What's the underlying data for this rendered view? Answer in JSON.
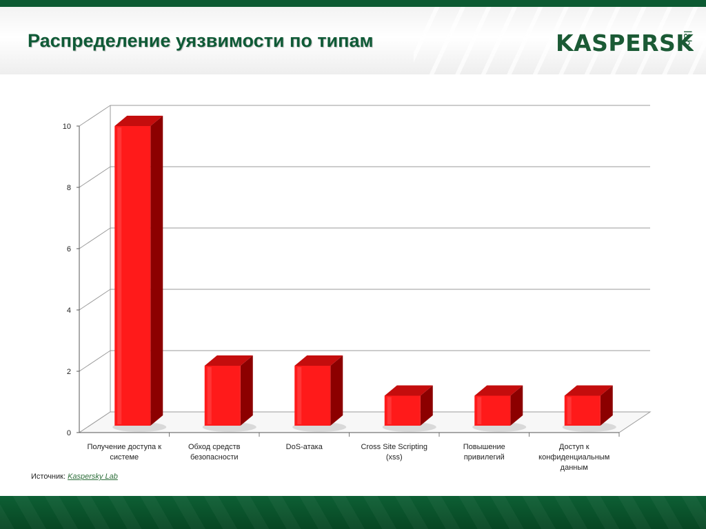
{
  "slide": {
    "title": "Распределение уязвимости по типам",
    "logo": {
      "main": "KASPERSKY",
      "sub": "lab"
    },
    "source": {
      "label": "Источник:",
      "link": "Kaspersky Lab"
    }
  },
  "colors": {
    "bar_front": "#ff1a1a",
    "bar_side": "#8c0000",
    "bar_top": "#c40d0d",
    "header_green": "#0f5a36"
  },
  "chart_data": {
    "type": "bar",
    "categories": [
      [
        "Получение доступа к",
        "системе"
      ],
      [
        "Обход средств",
        "безопасности"
      ],
      [
        "DoS-атака"
      ],
      [
        "Cross Site Scripting",
        "(xss)"
      ],
      [
        "Повышение",
        "привилегий"
      ],
      [
        "Доступ к",
        "конфиденциальным",
        "данным"
      ]
    ],
    "values": [
      10,
      2,
      2,
      1,
      1,
      1
    ],
    "ylim": [
      0,
      10
    ],
    "yticks": [
      "0",
      "2",
      "4",
      "6",
      "8",
      "10"
    ],
    "grid": true,
    "style": "3d-columns"
  }
}
